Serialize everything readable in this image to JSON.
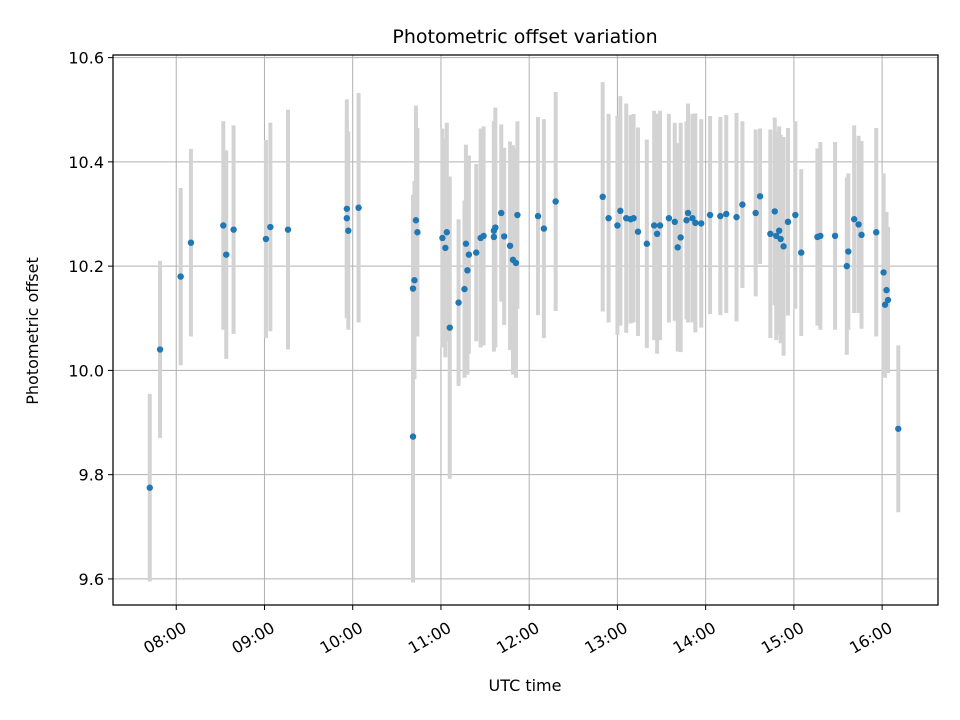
{
  "chart_data": {
    "type": "scatter",
    "title": "Photometric offset variation",
    "xlabel": "UTC time",
    "ylabel": "Photometric offset",
    "grid": true,
    "xlim": [
      "07:17",
      "16:38"
    ],
    "ylim": [
      9.55,
      10.605
    ],
    "x_ticks": [
      "08:00",
      "09:00",
      "10:00",
      "11:00",
      "12:00",
      "13:00",
      "14:00",
      "15:00",
      "16:00"
    ],
    "y_ticks": [
      9.6,
      9.8,
      10.0,
      10.2,
      10.4,
      10.6
    ],
    "colors": {
      "marker": "#1f77b4",
      "errorbar": "#d3d3d3",
      "grid": "#b0b0b0"
    },
    "series": [
      {
        "x": [
          "07:42",
          "07:49",
          "08:03",
          "08:10",
          "08:32",
          "08:34",
          "08:39",
          "09:01",
          "09:04",
          "09:16",
          "09:56",
          "09:56",
          "09:57",
          "10:04",
          "10:41",
          "10:41",
          "10:42",
          "10:43",
          "10:44",
          "11:01",
          "11:03",
          "11:04",
          "11:06",
          "11:12",
          "11:16",
          "11:17",
          "11:18",
          "11:19",
          "11:24",
          "11:27",
          "11:29",
          "11:36",
          "11:36",
          "11:37",
          "11:41",
          "11:43",
          "11:47",
          "11:49",
          "11:51",
          "11:52",
          "12:06",
          "12:10",
          "12:18",
          "12:50",
          "12:54",
          "13:00",
          "13:02",
          "13:06",
          "13:09",
          "13:11",
          "13:14",
          "13:20",
          "13:25",
          "13:27",
          "13:29",
          "13:35",
          "13:39",
          "13:41",
          "13:43",
          "13:47",
          "13:48",
          "13:51",
          "13:53",
          "13:57",
          "14:03",
          "14:10",
          "14:14",
          "14:21",
          "14:25",
          "14:34",
          "14:37",
          "14:44",
          "14:47",
          "14:48",
          "14:50",
          "14:51",
          "14:53",
          "14:56",
          "15:01",
          "15:05",
          "15:16",
          "15:18",
          "15:28",
          "15:36",
          "15:37",
          "15:41",
          "15:44",
          "15:46",
          "15:56",
          "16:01",
          "16:02",
          "16:03",
          "16:04",
          "16:11"
        ],
        "y": [
          9.775,
          10.04,
          10.18,
          10.245,
          10.278,
          10.222,
          10.27,
          10.252,
          10.275,
          10.27,
          10.31,
          10.292,
          10.268,
          10.312,
          9.873,
          10.157,
          10.173,
          10.288,
          10.265,
          10.254,
          10.235,
          10.265,
          10.082,
          10.13,
          10.156,
          10.243,
          10.192,
          10.222,
          10.226,
          10.254,
          10.258,
          10.268,
          10.256,
          10.274,
          10.302,
          10.257,
          10.239,
          10.212,
          10.206,
          10.298,
          10.296,
          10.272,
          10.324,
          10.333,
          10.292,
          10.278,
          10.306,
          10.292,
          10.29,
          10.292,
          10.266,
          10.243,
          10.278,
          10.262,
          10.278,
          10.292,
          10.285,
          10.236,
          10.255,
          10.288,
          10.302,
          10.292,
          10.283,
          10.282,
          10.298,
          10.296,
          10.3,
          10.294,
          10.318,
          10.302,
          10.334,
          10.262,
          10.305,
          10.258,
          10.268,
          10.252,
          10.238,
          10.285,
          10.298,
          10.226,
          10.256,
          10.258,
          10.258,
          10.2,
          10.228,
          10.29,
          10.28,
          10.26,
          10.265,
          10.188,
          10.126,
          10.154,
          10.135,
          9.888
        ],
        "yerr": [
          0.18,
          0.17,
          0.17,
          0.18,
          0.2,
          0.2,
          0.2,
          0.19,
          0.2,
          0.23,
          0.21,
          0.19,
          0.19,
          0.22,
          0.28,
          0.18,
          0.19,
          0.22,
          0.2,
          0.21,
          0.21,
          0.21,
          0.29,
          0.16,
          0.17,
          0.19,
          0.2,
          0.19,
          0.17,
          0.21,
          0.21,
          0.21,
          0.22,
          0.23,
          0.17,
          0.17,
          0.2,
          0.22,
          0.22,
          0.18,
          0.19,
          0.21,
          0.21,
          0.22,
          0.2,
          0.21,
          0.22,
          0.22,
          0.2,
          0.2,
          0.2,
          0.2,
          0.22,
          0.23,
          0.22,
          0.2,
          0.19,
          0.2,
          0.22,
          0.19,
          0.21,
          0.2,
          0.21,
          0.2,
          0.19,
          0.19,
          0.19,
          0.2,
          0.16,
          0.16,
          0.13,
          0.2,
          0.18,
          0.2,
          0.2,
          0.2,
          0.21,
          0.18,
          0.18,
          0.16,
          0.17,
          0.18,
          0.18,
          0.17,
          0.15,
          0.18,
          0.17,
          0.18,
          0.2,
          0.19,
          0.14,
          0.15,
          0.14,
          0.16
        ]
      }
    ]
  }
}
